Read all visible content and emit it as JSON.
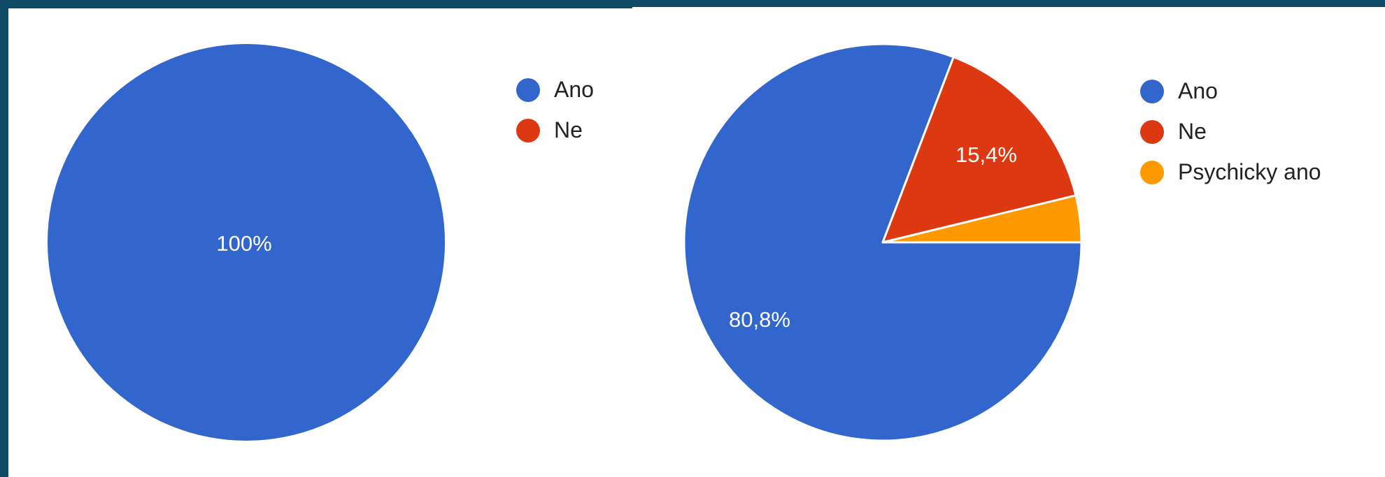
{
  "chart_data": [
    {
      "type": "pie",
      "categories": [
        "Ano",
        "Ne"
      ],
      "values": [
        100,
        0
      ],
      "value_labels": [
        "100%",
        ""
      ],
      "colors": [
        "#3366cc",
        "#dc3912"
      ],
      "legend_position": "right",
      "legend": [
        "Ano",
        "Ne"
      ]
    },
    {
      "type": "pie",
      "categories": [
        "Ano",
        "Ne",
        "Psychicky ano"
      ],
      "values": [
        80.8,
        15.4,
        3.8
      ],
      "value_labels": [
        "80,8%",
        "15,4%",
        ""
      ],
      "colors": [
        "#3366cc",
        "#dc3912",
        "#ff9900"
      ],
      "legend_position": "right",
      "legend": [
        "Ano",
        "Ne",
        "Psychicky ano"
      ]
    }
  ]
}
